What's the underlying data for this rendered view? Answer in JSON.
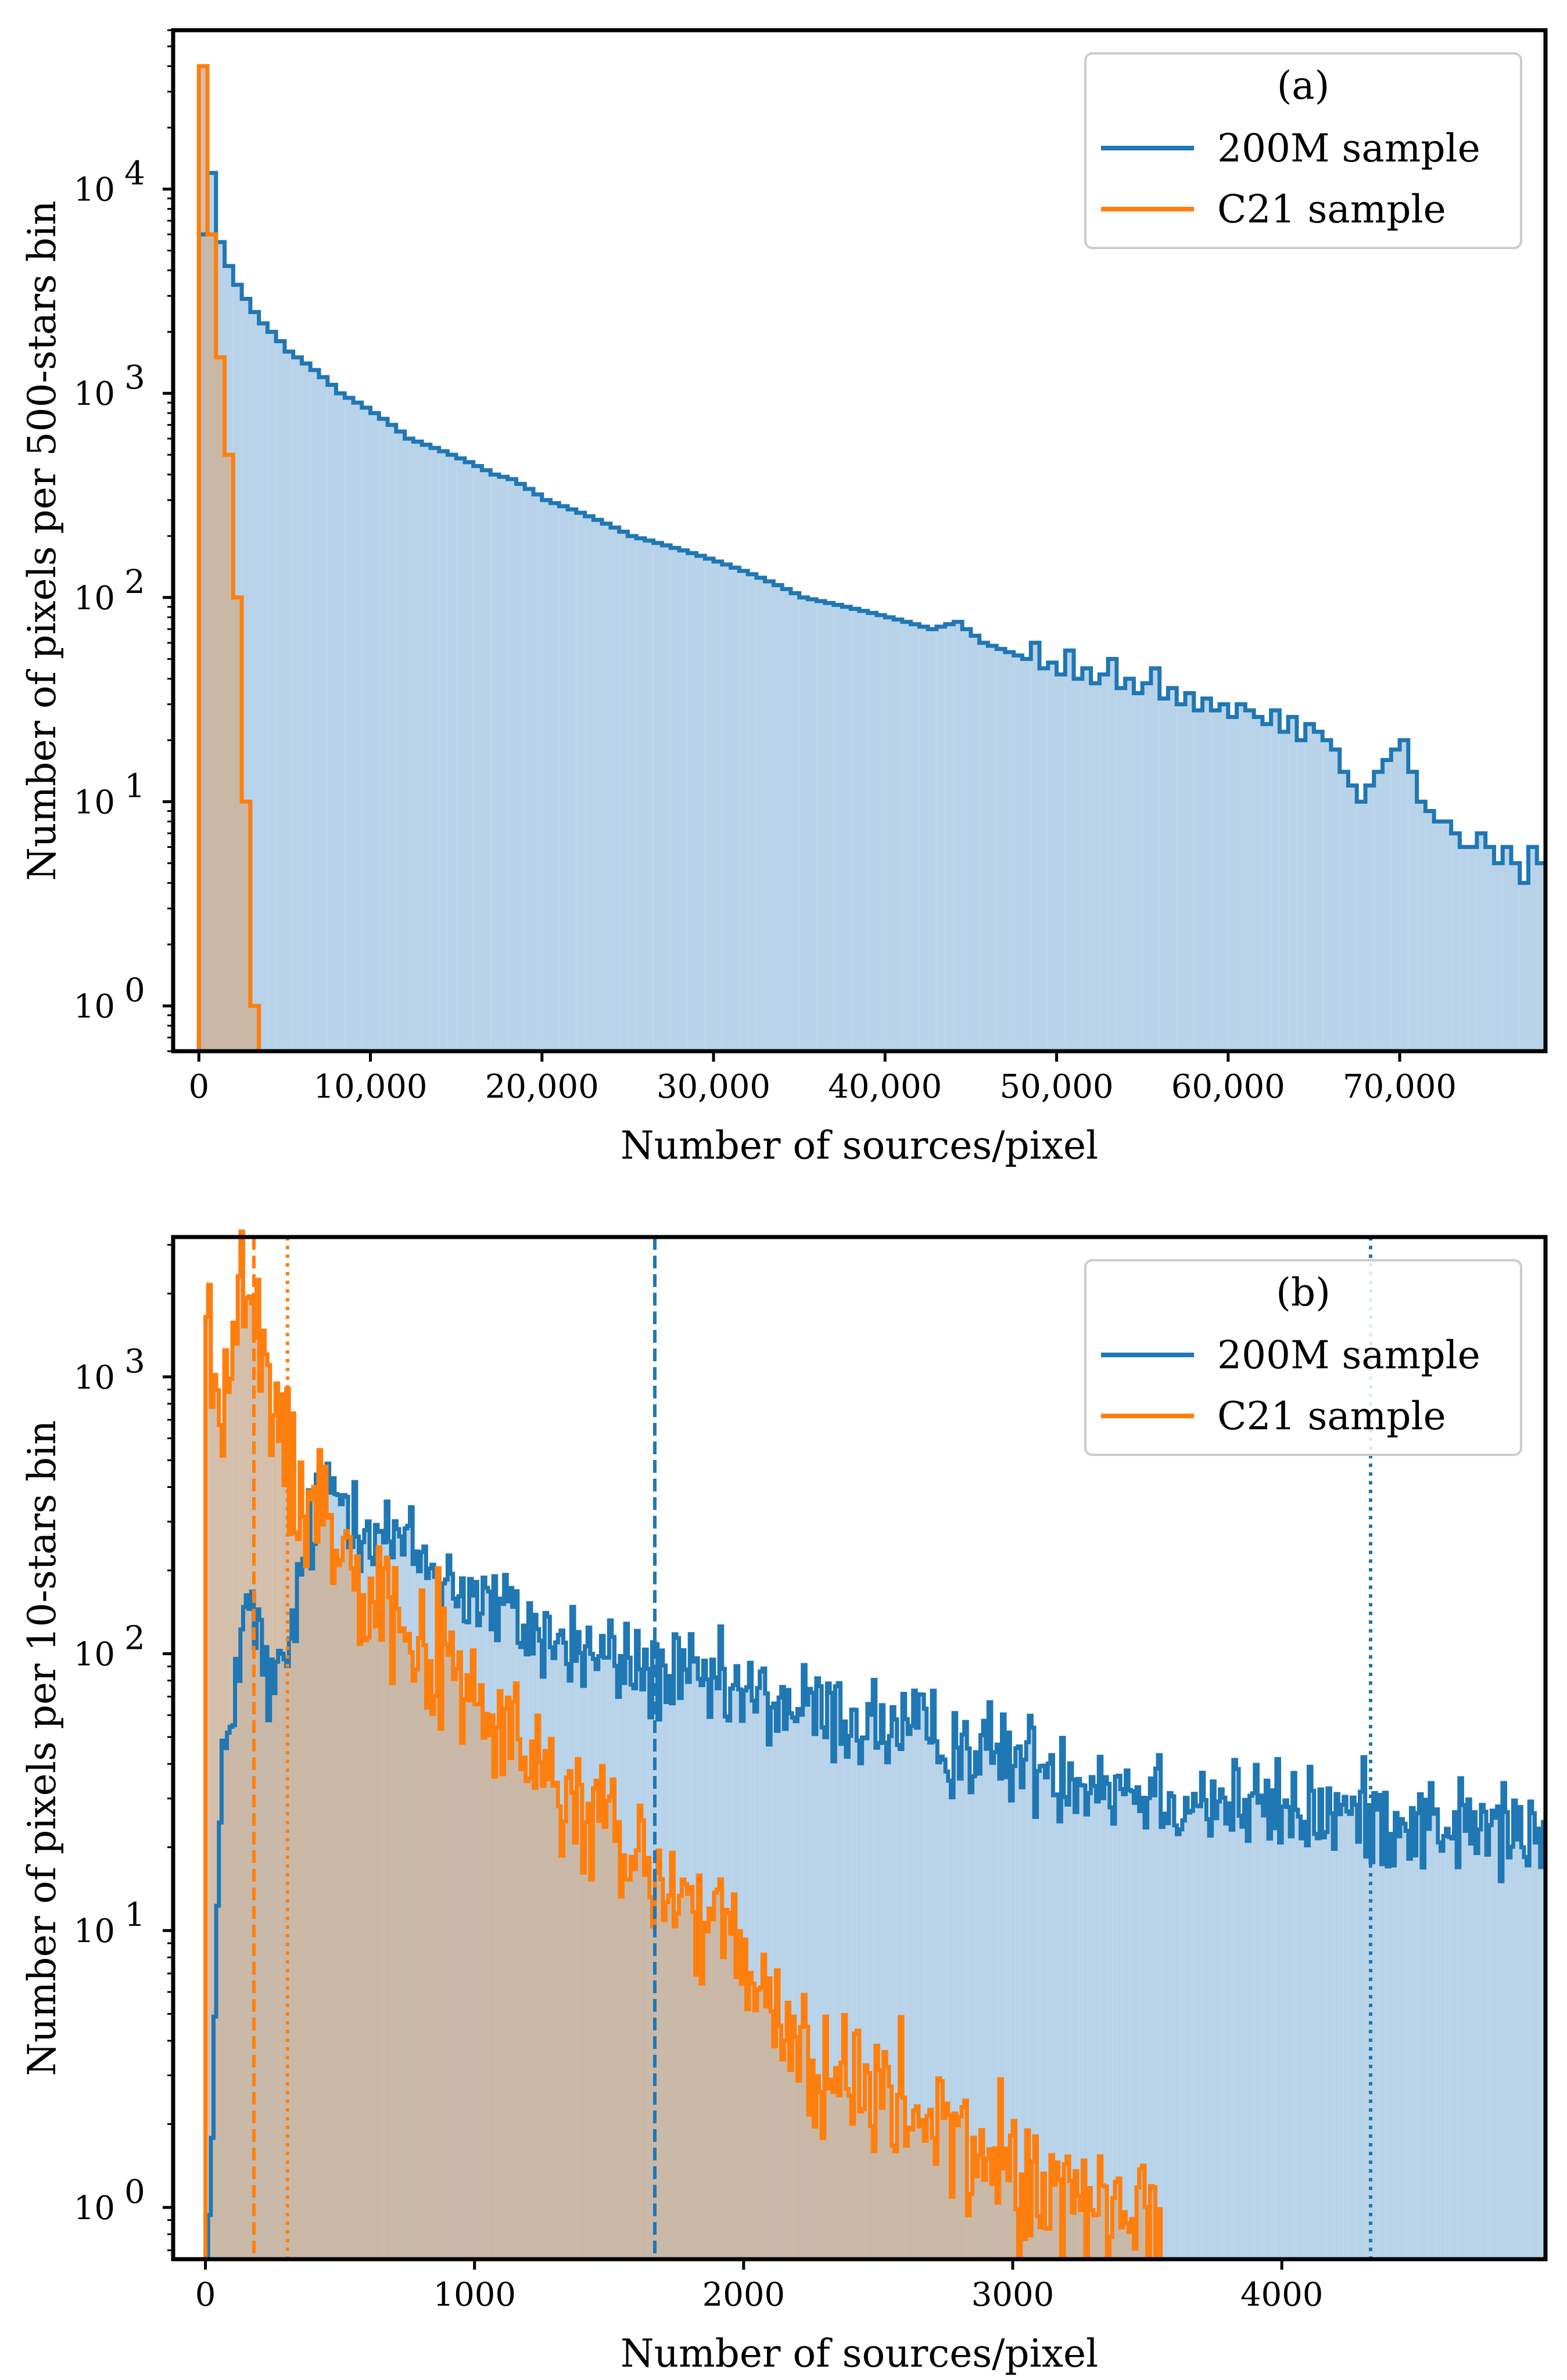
{
  "colors": {
    "blue": "#1f77b4",
    "orange": "#ff7f0e",
    "blue_fill": "#b4d1e8",
    "orange_fill": "#cdb39b",
    "orange_fill_only": "#ffd2ad"
  },
  "chart_data": [
    {
      "type": "histogram",
      "panel": "(a)",
      "xlabel": "Number of sources/pixel",
      "ylabel": "Number of pixels per 500-stars bin",
      "yscale": "log",
      "xlim": [
        -1500,
        78500
      ],
      "ylim": [
        0.6,
        60000
      ],
      "xticks": [
        0,
        10000,
        20000,
        30000,
        40000,
        50000,
        60000,
        70000
      ],
      "xtick_labels": [
        "0",
        "10,000",
        "20,000",
        "30,000",
        "40,000",
        "50,000",
        "60,000",
        "70,000"
      ],
      "yticks": [
        1,
        10,
        100,
        1000,
        10000
      ],
      "ytick_labels": [
        "10^0",
        "10^1",
        "10^2",
        "10^3",
        "10^4"
      ],
      "bin_width": 500,
      "legend": {
        "title": "(a)",
        "entries": [
          "200M sample",
          "C21 sample"
        ],
        "position": "upper right"
      },
      "series": [
        {
          "name": "200M sample",
          "bin_start": 0,
          "counts": [
            6000,
            12000,
            5500,
            4200,
            3400,
            2900,
            2500,
            2200,
            2000,
            1800,
            1600,
            1500,
            1400,
            1300,
            1200,
            1100,
            1000,
            950,
            900,
            850,
            800,
            750,
            700,
            650,
            600,
            580,
            560,
            540,
            520,
            500,
            480,
            460,
            440,
            420,
            400,
            390,
            380,
            360,
            340,
            320,
            300,
            290,
            280,
            270,
            260,
            250,
            240,
            230,
            220,
            210,
            200,
            195,
            190,
            185,
            180,
            175,
            170,
            165,
            160,
            155,
            150,
            145,
            140,
            135,
            130,
            125,
            120,
            115,
            110,
            105,
            100,
            98,
            96,
            94,
            92,
            90,
            88,
            86,
            84,
            82,
            80,
            78,
            76,
            74,
            72,
            70,
            72,
            74,
            76,
            70,
            65,
            60,
            58,
            56,
            54,
            52,
            50,
            60,
            45,
            48,
            42,
            55,
            40,
            45,
            38,
            42,
            50,
            36,
            40,
            34,
            38,
            45,
            32,
            36,
            30,
            34,
            28,
            32,
            28,
            30,
            26,
            30,
            28,
            26,
            24,
            28,
            22,
            26,
            20,
            24,
            22,
            20,
            18,
            14,
            12,
            10,
            12,
            14,
            16,
            18,
            20,
            14,
            10,
            9,
            8,
            8,
            7,
            6,
            6,
            7,
            6,
            5,
            6,
            5,
            4,
            6,
            5,
            4,
            5,
            4,
            3,
            3,
            4,
            3,
            3,
            3,
            4,
            3,
            2,
            3,
            2,
            3,
            2,
            3,
            2,
            2,
            3,
            2,
            1,
            3,
            1,
            3,
            2,
            1,
            2,
            3,
            1,
            2,
            1,
            2,
            1,
            3,
            1,
            2,
            1,
            1,
            2,
            3,
            1,
            2,
            1,
            3,
            1,
            2,
            1,
            2,
            1,
            3,
            1,
            2,
            1,
            1,
            2,
            3,
            1,
            2,
            1,
            2,
            1,
            1,
            1,
            1,
            1,
            0.6,
            0.6,
            0.6,
            0.6,
            1
          ]
        },
        {
          "name": "C21 sample",
          "bin_start": 0,
          "counts": [
            40000,
            6000,
            1500,
            500,
            100,
            10,
            1
          ]
        }
      ]
    },
    {
      "type": "histogram",
      "panel": "(b)",
      "xlabel": "Number of sources/pixel",
      "ylabel": "Number of pixels per 10-stars bin",
      "yscale": "log",
      "xlim": [
        -120,
        4980
      ],
      "ylim": [
        0.65,
        3200
      ],
      "xticks": [
        0,
        1000,
        2000,
        3000,
        4000
      ],
      "xtick_labels": [
        "0",
        "1000",
        "2000",
        "3000",
        "4000"
      ],
      "yticks": [
        1,
        10,
        100,
        1000
      ],
      "ytick_labels": [
        "10^0",
        "10^1",
        "10^2",
        "10^3"
      ],
      "bin_width": 10,
      "legend": {
        "title": "(b)",
        "entries": [
          "200M sample",
          "C21 sample"
        ],
        "position": "upper right"
      },
      "reference_lines": [
        {
          "series": "C21 sample",
          "x": 180,
          "style": "dashed"
        },
        {
          "series": "C21 sample",
          "x": 305,
          "style": "dotted"
        },
        {
          "series": "200M sample",
          "x": 1670,
          "style": "dashed"
        },
        {
          "series": "200M sample",
          "x": 4330,
          "style": "dotted"
        }
      ],
      "series": [
        {
          "name": "200M sample",
          "model": "log-interpolated profile with noise",
          "knots_x": [
            0,
            20,
            40,
            60,
            80,
            100,
            130,
            160,
            200,
            250,
            300,
            350,
            400,
            450,
            500,
            600,
            800,
            1000,
            1300,
            1670,
            2000,
            2500,
            3000,
            3500,
            4000,
            4330,
            4980
          ],
          "knots_y": [
            0.6,
            1,
            8,
            30,
            50,
            70,
            100,
            150,
            110,
            70,
            90,
            180,
            300,
            420,
            380,
            300,
            220,
            160,
            110,
            85,
            70,
            55,
            42,
            32,
            27,
            26,
            22
          ],
          "noise": 0.09
        },
        {
          "name": "C21 sample",
          "model": "log-interpolated profile with noise",
          "knots_x": [
            0,
            30,
            60,
            90,
            130,
            160,
            200,
            250,
            300,
            400,
            500,
            600,
            800,
            1000,
            1200,
            1500,
            1700,
            1900,
            2100,
            2300,
            2500,
            2700,
            2900,
            3100,
            3300,
            3500,
            3560
          ],
          "knots_y": [
            2000,
            1000,
            700,
            1100,
            2100,
            1800,
            1200,
            800,
            500,
            350,
            280,
            200,
            110,
            70,
            40,
            22,
            15,
            10,
            5,
            3,
            2.5,
            2,
            1.5,
            1.2,
            1,
            1,
            0.65
          ],
          "noise": 0.13
        }
      ]
    }
  ]
}
